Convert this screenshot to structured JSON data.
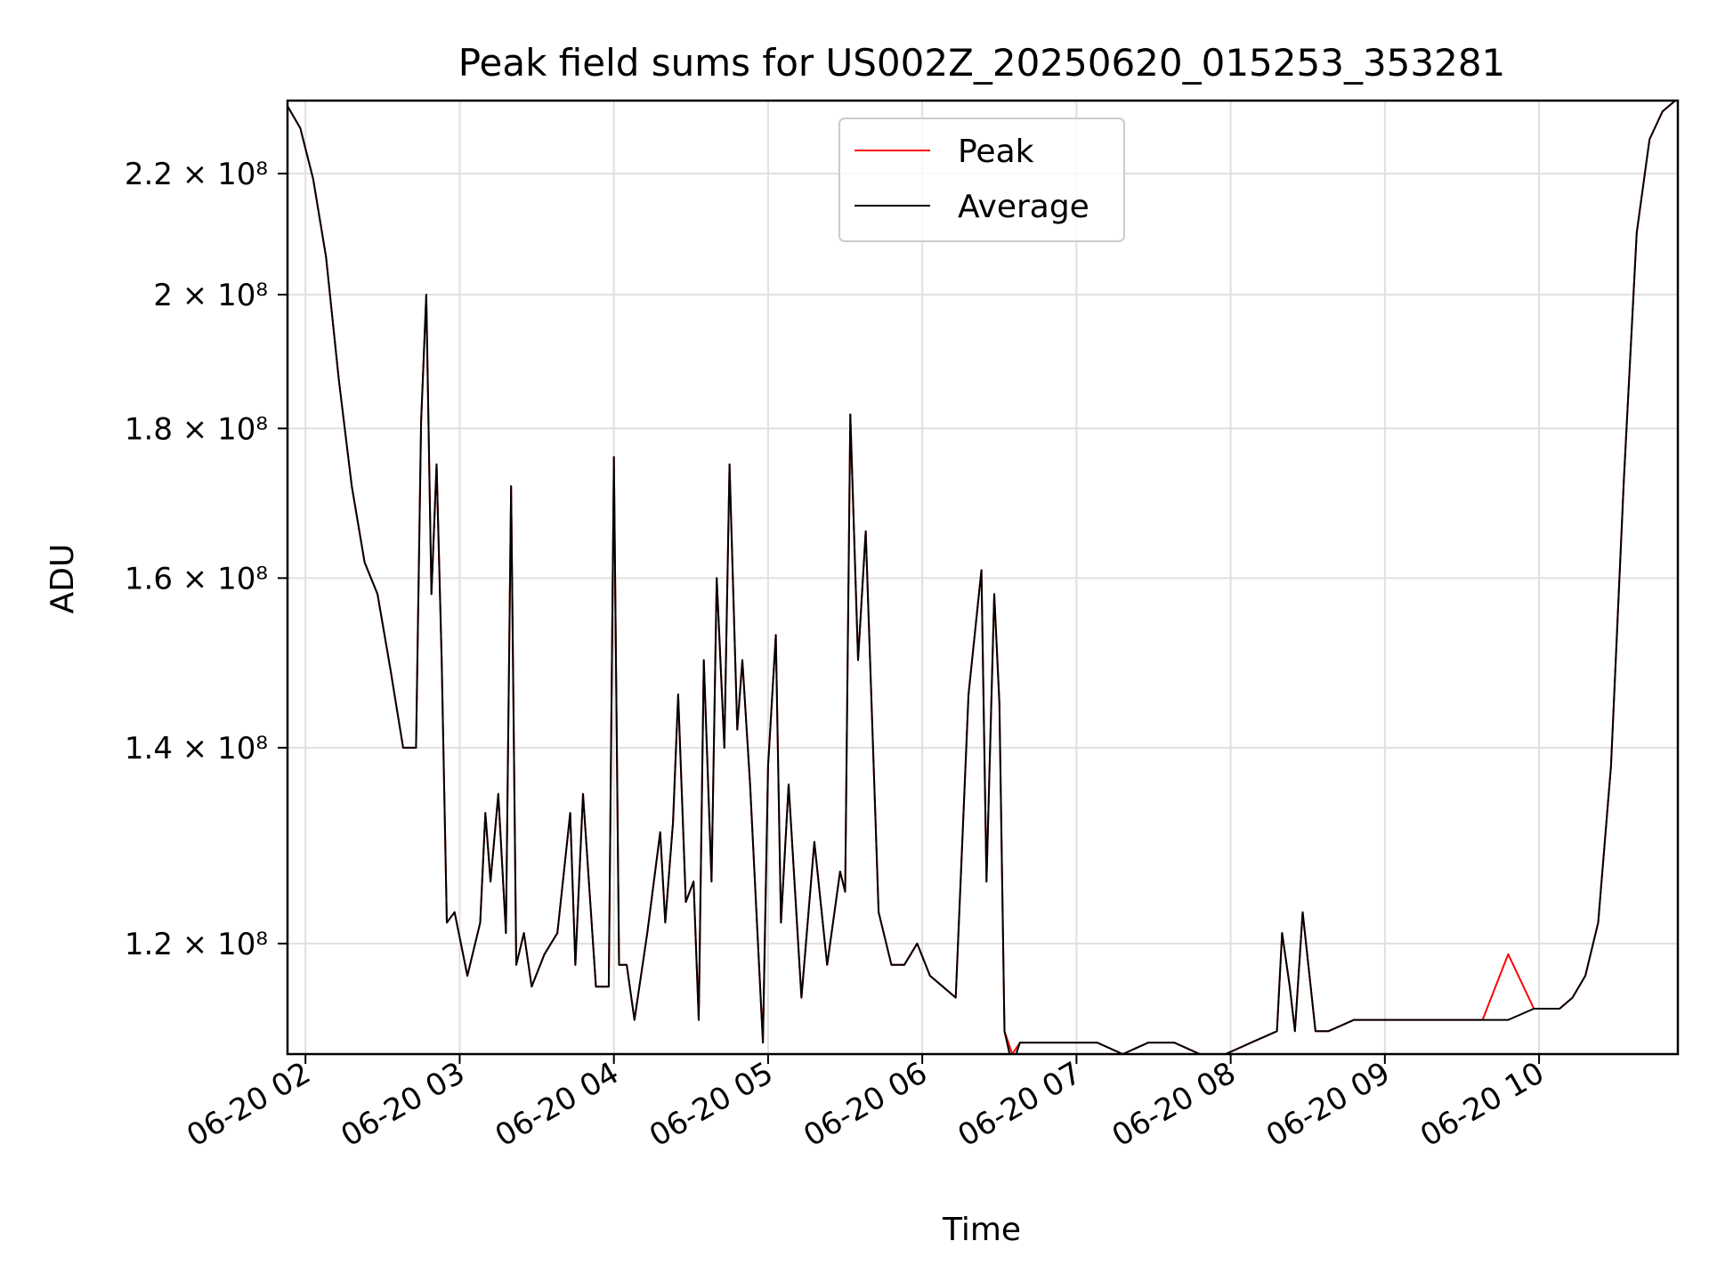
{
  "chart_data": {
    "type": "line",
    "title": "Peak field sums for US002Z_20250620_015253_353281",
    "xlabel": "Time",
    "ylabel": "ADU",
    "y_scale": "log",
    "xlim": [
      "2025-06-20T01:53",
      "2025-06-20T10:54"
    ],
    "ylim": [
      110000000,
      233000000
    ],
    "grid": true,
    "legend": "top-center",
    "x_ticks": [
      "06-20 02",
      "06-20 03",
      "06-20 04",
      "06-20 05",
      "06-20 06",
      "06-20 07",
      "06-20 08",
      "06-20 09",
      "06-20 10"
    ],
    "y_ticks": [
      {
        "value": 120000000,
        "label": "1.2 × 10⁸"
      },
      {
        "value": 140000000,
        "label": "1.4 × 10⁸"
      },
      {
        "value": 160000000,
        "label": "1.6 × 10⁸"
      },
      {
        "value": 180000000,
        "label": "1.8 × 10⁸"
      },
      {
        "value": 200000000,
        "label": "2 × 10⁸"
      },
      {
        "value": 220000000,
        "label": "2.2 × 10⁸"
      }
    ],
    "x": [
      "01:53",
      "01:58",
      "02:03",
      "02:08",
      "02:13",
      "02:18",
      "02:23",
      "02:28",
      "02:33",
      "02:38",
      "02:43",
      "02:45",
      "02:47",
      "02:49",
      "02:51",
      "02:53",
      "02:55",
      "02:58",
      "03:03",
      "03:08",
      "03:10",
      "03:12",
      "03:15",
      "03:18",
      "03:20",
      "03:22",
      "03:25",
      "03:28",
      "03:33",
      "03:38",
      "03:41",
      "03:43",
      "03:45",
      "03:48",
      "03:53",
      "03:58",
      "04:00",
      "04:02",
      "04:05",
      "04:08",
      "04:13",
      "04:18",
      "04:20",
      "04:23",
      "04:25",
      "04:28",
      "04:31",
      "04:33",
      "04:35",
      "04:38",
      "04:40",
      "04:43",
      "04:45",
      "04:48",
      "04:50",
      "04:53",
      "04:58",
      "05:00",
      "05:03",
      "05:05",
      "05:08",
      "05:13",
      "05:18",
      "05:23",
      "05:28",
      "05:30",
      "05:32",
      "05:35",
      "05:38",
      "05:43",
      "05:48",
      "05:53",
      "05:58",
      "06:03",
      "06:08",
      "06:13",
      "06:18",
      "06:23",
      "06:25",
      "06:28",
      "06:30",
      "06:32",
      "06:35",
      "06:38",
      "06:40",
      "06:43",
      "06:45",
      "06:48",
      "06:53",
      "06:58",
      "07:08",
      "07:18",
      "07:28",
      "07:38",
      "07:48",
      "07:58",
      "08:08",
      "08:18",
      "08:20",
      "08:23",
      "08:25",
      "08:28",
      "08:33",
      "08:38",
      "08:48",
      "08:58",
      "09:08",
      "09:18",
      "09:28",
      "09:38",
      "09:48",
      "09:58",
      "10:03",
      "10:08",
      "10:13",
      "10:18",
      "10:23",
      "10:28",
      "10:33",
      "10:38",
      "10:43",
      "10:48",
      "10:53"
    ],
    "series": [
      {
        "name": "Peak",
        "color": "#ff0000",
        "values": [
          232000000,
          228000000,
          219000000,
          206000000,
          187000000,
          172000000,
          162000000,
          158000000,
          149000000,
          140000000,
          140000000,
          181000000,
          200000000,
          158000000,
          175000000,
          150000000,
          122000000,
          123000000,
          117000000,
          122000000,
          133000000,
          126000000,
          135000000,
          121000000,
          172000000,
          118000000,
          121000000,
          116000000,
          119000000,
          121000000,
          128000000,
          133000000,
          118000000,
          135000000,
          116000000,
          116000000,
          176000000,
          118000000,
          118000000,
          113000000,
          121000000,
          131000000,
          122000000,
          132000000,
          146000000,
          124000000,
          126000000,
          113000000,
          150000000,
          126000000,
          160000000,
          140000000,
          175000000,
          142000000,
          150000000,
          136000000,
          111000000,
          138000000,
          153000000,
          122000000,
          136000000,
          115000000,
          130000000,
          118000000,
          127000000,
          125000000,
          182000000,
          150000000,
          166000000,
          123000000,
          118000000,
          118000000,
          120000000,
          117000000,
          116000000,
          115000000,
          146000000,
          161000000,
          126000000,
          158000000,
          145000000,
          112000000,
          110000000,
          111000000,
          111000000,
          111000000,
          111000000,
          111000000,
          111000000,
          111000000,
          111000000,
          110000000,
          111000000,
          111000000,
          110000000,
          110000000,
          111000000,
          112000000,
          121000000,
          116000000,
          112000000,
          123000000,
          112000000,
          112000000,
          113000000,
          113000000,
          113000000,
          113000000,
          113000000,
          113000000,
          119000000,
          114000000,
          114000000,
          114000000,
          115000000,
          117000000,
          122000000,
          138000000,
          173000000,
          210000000,
          226000000,
          231000000,
          233000000
        ]
      },
      {
        "name": "Average",
        "color": "#000000",
        "values": [
          232000000,
          228000000,
          219000000,
          206000000,
          187000000,
          172000000,
          162000000,
          158000000,
          149000000,
          140000000,
          140000000,
          181000000,
          200000000,
          158000000,
          175000000,
          150000000,
          122000000,
          123000000,
          117000000,
          122000000,
          133000000,
          126000000,
          135000000,
          121000000,
          172000000,
          118000000,
          121000000,
          116000000,
          119000000,
          121000000,
          128000000,
          133000000,
          118000000,
          135000000,
          116000000,
          116000000,
          176000000,
          118000000,
          118000000,
          113000000,
          121000000,
          131000000,
          122000000,
          132000000,
          146000000,
          124000000,
          126000000,
          113000000,
          150000000,
          126000000,
          160000000,
          140000000,
          175000000,
          142000000,
          150000000,
          136000000,
          111000000,
          138000000,
          153000000,
          122000000,
          136000000,
          115000000,
          130000000,
          118000000,
          127000000,
          125000000,
          182000000,
          150000000,
          166000000,
          123000000,
          118000000,
          118000000,
          120000000,
          117000000,
          116000000,
          115000000,
          146000000,
          161000000,
          126000000,
          158000000,
          145000000,
          112000000,
          109000000,
          111000000,
          111000000,
          111000000,
          111000000,
          111000000,
          111000000,
          111000000,
          111000000,
          110000000,
          111000000,
          111000000,
          110000000,
          110000000,
          111000000,
          112000000,
          121000000,
          116000000,
          112000000,
          123000000,
          112000000,
          112000000,
          113000000,
          113000000,
          113000000,
          113000000,
          113000000,
          113000000,
          113000000,
          114000000,
          114000000,
          114000000,
          115000000,
          117000000,
          122000000,
          138000000,
          173000000,
          210000000,
          226000000,
          231000000,
          233000000
        ]
      }
    ]
  }
}
